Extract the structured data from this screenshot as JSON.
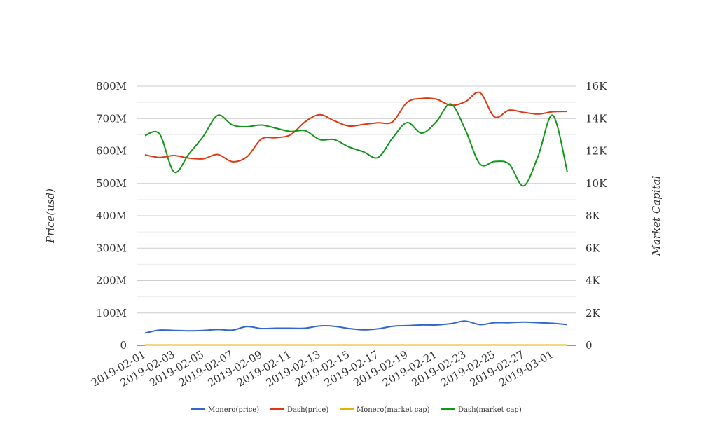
{
  "chart_data": {
    "type": "line",
    "title": "",
    "xlabel": "",
    "ylabel": "Price(usd)",
    "y2label": "Market Capital",
    "ylim": [
      0,
      800000000
    ],
    "y2lim": [
      0,
      16000
    ],
    "grid": true,
    "legend_position": "bottom",
    "left_tick_labels": [
      "0",
      "100M",
      "200M",
      "300M",
      "400M",
      "500M",
      "600M",
      "700M",
      "800M"
    ],
    "right_tick_labels": [
      "0",
      "2K",
      "4K",
      "6K",
      "8K",
      "10K",
      "12K",
      "14K",
      "16K"
    ],
    "x": [
      "2019-02-01",
      "2019-02-02",
      "2019-02-03",
      "2019-02-04",
      "2019-02-05",
      "2019-02-06",
      "2019-02-07",
      "2019-02-08",
      "2019-02-09",
      "2019-02-10",
      "2019-02-11",
      "2019-02-12",
      "2019-02-13",
      "2019-02-14",
      "2019-02-15",
      "2019-02-16",
      "2019-02-17",
      "2019-02-18",
      "2019-02-19",
      "2019-02-20",
      "2019-02-21",
      "2019-02-22",
      "2019-02-23",
      "2019-02-24",
      "2019-02-25",
      "2019-02-26",
      "2019-02-27",
      "2019-02-28",
      "2019-03-01",
      "2019-03-02"
    ],
    "x_tick_labels": [
      "2019-02-01",
      "2019-02-03",
      "2019-02-05",
      "2019-02-07",
      "2019-02-09",
      "2019-02-11",
      "2019-02-13",
      "2019-02-15",
      "2019-02-17",
      "2019-02-19",
      "2019-02-21",
      "2019-02-23",
      "2019-02-25",
      "2019-02-27",
      "2019-03-01"
    ],
    "series": [
      {
        "name": "Monero(price)",
        "axis": "left",
        "color": "#3366cc",
        "values": [
          38000000,
          47000000,
          46000000,
          45000000,
          46000000,
          49000000,
          47000000,
          58000000,
          52000000,
          53000000,
          53000000,
          53000000,
          60000000,
          59000000,
          52000000,
          48000000,
          51000000,
          59000000,
          61000000,
          63000000,
          63000000,
          67000000,
          75000000,
          64000000,
          70000000,
          70000000,
          72000000,
          70000000,
          68000000,
          64000000
        ]
      },
      {
        "name": "Dash(price)",
        "axis": "left",
        "color": "#dc3912",
        "values": [
          588000000,
          580000000,
          586000000,
          578000000,
          576000000,
          589000000,
          567000000,
          582000000,
          637000000,
          641000000,
          650000000,
          690000000,
          712000000,
          693000000,
          677000000,
          682000000,
          687000000,
          690000000,
          750000000,
          762000000,
          760000000,
          741000000,
          752000000,
          780000000,
          705000000,
          726000000,
          719000000,
          714000000,
          721000000,
          722000000
        ]
      },
      {
        "name": "Monero(market cap)",
        "axis": "right",
        "color": "#e6b100",
        "values": [
          20,
          20,
          20,
          20,
          20,
          20,
          20,
          20,
          20,
          20,
          20,
          20,
          20,
          20,
          20,
          20,
          20,
          20,
          20,
          20,
          20,
          20,
          20,
          20,
          20,
          20,
          20,
          20,
          20,
          20
        ]
      },
      {
        "name": "Dash(market cap)",
        "axis": "right",
        "color": "#109618",
        "values": [
          12950,
          13050,
          10700,
          11800,
          12900,
          14200,
          13600,
          13500,
          13600,
          13400,
          13200,
          13250,
          12700,
          12700,
          12250,
          11950,
          11600,
          12800,
          13750,
          13100,
          13800,
          14900,
          13300,
          11200,
          11350,
          11200,
          9850,
          11700,
          14200,
          10700
        ]
      }
    ]
  }
}
